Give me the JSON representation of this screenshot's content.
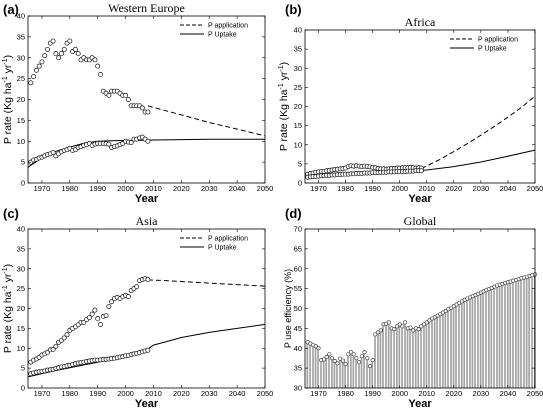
{
  "chart_data": [
    {
      "panel_label": "(a)",
      "title": "Western Europe",
      "type": "line",
      "xlabel": "Year",
      "ylabel": "P rate (Kg ha",
      "ylabel_sup1": "-1",
      "ylabel_mid": " yr",
      "ylabel_sup2": "-1",
      "ylabel_end": ")",
      "xlim": [
        1965,
        2050
      ],
      "ylim": [
        0,
        40
      ],
      "xticks": [
        1970,
        1980,
        1990,
        2000,
        2010,
        2020,
        2030,
        2040,
        2050
      ],
      "yticks": [
        0,
        5,
        10,
        15,
        20,
        25,
        30,
        35,
        40
      ],
      "legend_position": "top-right",
      "series": [
        {
          "name": "P application",
          "style": "dashed",
          "x": [
            2008,
            2015,
            2020,
            2025,
            2030,
            2035,
            2040,
            2045,
            2050
          ],
          "y": [
            18.5,
            17.2,
            16.3,
            15.4,
            14.5,
            13.7,
            12.9,
            12.1,
            11.3
          ]
        },
        {
          "name": "P Uptake",
          "style": "solid",
          "x": [
            1965,
            1970,
            1975,
            1980,
            1985,
            1990,
            1995,
            2000,
            2005,
            2010,
            2020,
            2030,
            2040,
            2050
          ],
          "y": [
            3.8,
            6.0,
            7.6,
            8.6,
            9.5,
            10.0,
            10.1,
            10.2,
            10.2,
            10.3,
            10.4,
            10.5,
            10.5,
            10.5
          ]
        },
        {
          "name": "",
          "style": "markers",
          "x": [
            1966,
            1967,
            1968,
            1969,
            1970,
            1971,
            1972,
            1973,
            1974,
            1975,
            1976,
            1977,
            1978,
            1979,
            1980,
            1981,
            1982,
            1983,
            1984,
            1985,
            1986,
            1987,
            1988,
            1989,
            1990,
            1991,
            1992,
            1993,
            1994,
            1995,
            1996,
            1997,
            1998,
            1999,
            2000,
            2001,
            2002,
            2003,
            2004,
            2005,
            2006,
            2007,
            2008
          ],
          "y": [
            24,
            25.5,
            27,
            28,
            29,
            30.5,
            32,
            33.5,
            34,
            31,
            30,
            31,
            32,
            33.5,
            34,
            31.5,
            32,
            31,
            29.5,
            30,
            29.5,
            29.5,
            30,
            29.5,
            28,
            26,
            22,
            21.5,
            21,
            22,
            22,
            22,
            21.5,
            21,
            21,
            20,
            18.5,
            18.5,
            18.5,
            18.5,
            18,
            17,
            17
          ]
        },
        {
          "name": "",
          "style": "markers",
          "x": [
            1966,
            1967,
            1968,
            1969,
            1970,
            1971,
            1972,
            1973,
            1974,
            1975,
            1976,
            1977,
            1978,
            1979,
            1980,
            1981,
            1982,
            1983,
            1984,
            1985,
            1986,
            1987,
            1988,
            1989,
            1990,
            1991,
            1992,
            1993,
            1994,
            1995,
            1996,
            1997,
            1998,
            1999,
            2000,
            2001,
            2002,
            2003,
            2004,
            2005,
            2006,
            2007,
            2008
          ],
          "y": [
            5,
            5.5,
            5.7,
            6,
            6.2,
            6.5,
            6.8,
            7,
            7.3,
            6.5,
            7,
            7.5,
            7.8,
            8,
            8.3,
            7.8,
            8,
            8.5,
            8.7,
            9,
            9.2,
            9.5,
            9,
            9.3,
            9.5,
            9.5,
            9.5,
            9.4,
            9.3,
            8.5,
            8.7,
            8.9,
            9.2,
            9.5,
            10,
            9.8,
            9.7,
            10.5,
            10.5,
            10.8,
            11,
            10.5,
            10
          ]
        }
      ]
    },
    {
      "panel_label": "(b)",
      "title": "Africa",
      "type": "line",
      "xlabel": "Year",
      "ylabel": "P rate (Kg ha",
      "ylabel_sup1": "-1",
      "ylabel_mid": " yr",
      "ylabel_sup2": "-1",
      "ylabel_end": ")",
      "xlim": [
        1965,
        2050
      ],
      "ylim": [
        0,
        40
      ],
      "xticks": [
        1970,
        1980,
        1990,
        2000,
        2010,
        2020,
        2030,
        2040,
        2050
      ],
      "yticks": [
        0,
        5,
        10,
        15,
        20,
        25,
        30,
        35,
        40
      ],
      "legend_position": "top-right",
      "series": [
        {
          "name": "P application",
          "style": "dashed",
          "x": [
            2008,
            2015,
            2020,
            2025,
            2030,
            2035,
            2040,
            2045,
            2050
          ],
          "y": [
            3.8,
            6.2,
            8.2,
            10.3,
            12.5,
            14.8,
            17.2,
            19.8,
            22.7
          ]
        },
        {
          "name": "P Uptake",
          "style": "solid",
          "x": [
            1965,
            1970,
            1975,
            1980,
            1985,
            1990,
            1995,
            2000,
            2005,
            2010,
            2020,
            2030,
            2040,
            2050
          ],
          "y": [
            1.5,
            1.7,
            1.9,
            2.1,
            2.3,
            2.5,
            2.7,
            2.9,
            3.1,
            3.4,
            4.3,
            5.5,
            7.0,
            8.6
          ]
        },
        {
          "name": "",
          "style": "markers",
          "x": [
            1966,
            1967,
            1968,
            1969,
            1970,
            1971,
            1972,
            1973,
            1974,
            1975,
            1976,
            1977,
            1978,
            1979,
            1980,
            1981,
            1982,
            1983,
            1984,
            1985,
            1986,
            1987,
            1988,
            1989,
            1990,
            1991,
            1992,
            1993,
            1994,
            1995,
            1996,
            1997,
            1998,
            1999,
            2000,
            2001,
            2002,
            2003,
            2004,
            2005,
            2006,
            2007,
            2008
          ],
          "y": [
            2.3,
            2.5,
            2.6,
            2.8,
            2.9,
            3,
            3,
            3.2,
            3.3,
            3.4,
            3.5,
            3.6,
            3.7,
            3.8,
            3.9,
            4.3,
            4.5,
            4.4,
            4.5,
            4.4,
            4.3,
            4.4,
            4.3,
            4.2,
            4.1,
            4,
            3.8,
            3.7,
            3.7,
            3.6,
            3.7,
            3.8,
            3.8,
            3.9,
            3.9,
            4,
            4,
            4,
            4.1,
            4,
            3.9,
            4,
            3.9
          ]
        },
        {
          "name": "",
          "style": "markers",
          "x": [
            1966,
            1967,
            1968,
            1969,
            1970,
            1971,
            1972,
            1973,
            1974,
            1975,
            1976,
            1977,
            1978,
            1979,
            1980,
            1981,
            1982,
            1983,
            1984,
            1985,
            1986,
            1987,
            1988,
            1989,
            1990,
            1991,
            1992,
            1993,
            1994,
            1995,
            1996,
            1997,
            1998,
            1999,
            2000,
            2001,
            2002,
            2003,
            2004,
            2005,
            2006,
            2007,
            2008
          ],
          "y": [
            1.5,
            1.6,
            1.7,
            1.7,
            1.8,
            1.9,
            1.9,
            2,
            2,
            2.1,
            2.1,
            2.2,
            2.2,
            2.3,
            2.3,
            2.3,
            2.4,
            2.4,
            2.5,
            2.5,
            2.5,
            2.6,
            2.6,
            2.6,
            2.7,
            2.7,
            2.7,
            2.8,
            2.8,
            2.8,
            2.9,
            2.9,
            2.9,
            3,
            3,
            3,
            3,
            3.1,
            3.1,
            3.1,
            3.2,
            3.2,
            3.2
          ]
        }
      ]
    },
    {
      "panel_label": "(c)",
      "title": "Asia",
      "type": "line",
      "xlabel": "Year",
      "ylabel": "P rate (Kg ha",
      "ylabel_sup1": "-1",
      "ylabel_mid": " yr",
      "ylabel_sup2": "-1",
      "ylabel_end": ")",
      "xlim": [
        1965,
        2050
      ],
      "ylim": [
        0,
        40
      ],
      "xticks": [
        1970,
        1980,
        1990,
        2000,
        2010,
        2020,
        2030,
        2040,
        2050
      ],
      "yticks": [
        0,
        5,
        10,
        15,
        20,
        25,
        30,
        35,
        40
      ],
      "legend_position": "top-right",
      "series": [
        {
          "name": "P application",
          "style": "dashed",
          "x": [
            2008,
            2015,
            2020,
            2025,
            2030,
            2035,
            2040,
            2045,
            2050
          ],
          "y": [
            27.2,
            27.0,
            26.8,
            26.6,
            26.4,
            26.2,
            26.0,
            25.8,
            25.6
          ]
        },
        {
          "name": "P Uptake",
          "style": "solid",
          "x": [
            1965,
            1970,
            1975,
            1980,
            1985,
            1990,
            1995,
            2000,
            2005,
            2008,
            2010,
            2020,
            2030,
            2040,
            2050
          ],
          "y": [
            2.8,
            3.6,
            4.4,
            5.1,
            5.8,
            6.5,
            7.3,
            8.0,
            8.9,
            9.8,
            10.8,
            12.7,
            14.0,
            15.0,
            16.0
          ]
        },
        {
          "name": "",
          "style": "markers",
          "x": [
            1966,
            1967,
            1968,
            1969,
            1970,
            1971,
            1972,
            1973,
            1974,
            1975,
            1976,
            1977,
            1978,
            1979,
            1980,
            1981,
            1982,
            1983,
            1984,
            1985,
            1986,
            1987,
            1988,
            1989,
            1990,
            1991,
            1992,
            1993,
            1994,
            1995,
            1996,
            1997,
            1998,
            1999,
            2000,
            2001,
            2002,
            2003,
            2004,
            2005,
            2006,
            2007,
            2008
          ],
          "y": [
            6.5,
            7,
            7.3,
            7.7,
            8.3,
            8.6,
            9,
            9.6,
            9.7,
            10.5,
            11.5,
            12,
            12.6,
            13.4,
            14.5,
            15,
            15.4,
            15.9,
            16.5,
            16.5,
            17.2,
            17.7,
            18.6,
            19.6,
            17.5,
            16,
            18,
            18.2,
            20.5,
            21.7,
            22.5,
            22.8,
            22.5,
            23,
            23.3,
            23,
            24.5,
            25,
            25.5,
            27,
            27.3,
            27.5,
            27.3
          ]
        },
        {
          "name": "",
          "style": "markers",
          "x": [
            1966,
            1967,
            1968,
            1969,
            1970,
            1971,
            1972,
            1973,
            1974,
            1975,
            1976,
            1977,
            1978,
            1979,
            1980,
            1981,
            1982,
            1983,
            1984,
            1985,
            1986,
            1987,
            1988,
            1989,
            1990,
            1991,
            1992,
            1993,
            1994,
            1995,
            1996,
            1997,
            1998,
            1999,
            2000,
            2001,
            2002,
            2003,
            2004,
            2005,
            2006,
            2007,
            2008
          ],
          "y": [
            3.6,
            3.8,
            4,
            4.1,
            4.2,
            4.3,
            4.5,
            4.6,
            4.7,
            4.9,
            5.1,
            5.3,
            5.4,
            5.6,
            5.7,
            5.9,
            6.1,
            6.3,
            6.4,
            6.5,
            6.7,
            6.8,
            6.9,
            7,
            7,
            7.1,
            7.2,
            7.2,
            7.3,
            7.4,
            7.5,
            7.6,
            7.8,
            7.9,
            8.1,
            8.2,
            8.4,
            8.6,
            8.7,
            8.9,
            9.1,
            9.3,
            9.5
          ]
        }
      ]
    },
    {
      "panel_label": "(d)",
      "title": "Global",
      "type": "bar",
      "xlabel": "Year",
      "ylabel": "P use efficiency (%)",
      "xlim": [
        1965,
        2050
      ],
      "ylim": [
        30,
        70
      ],
      "xticks": [
        1970,
        1980,
        1990,
        2000,
        2010,
        2020,
        2030,
        2040,
        2050
      ],
      "yticks": [
        30,
        35,
        40,
        45,
        50,
        55,
        60,
        65,
        70
      ],
      "bars": {
        "x": [
          1966,
          1967,
          1968,
          1969,
          1970,
          1971,
          1972,
          1973,
          1974,
          1975,
          1976,
          1977,
          1978,
          1979,
          1980,
          1981,
          1982,
          1983,
          1984,
          1985,
          1986,
          1987,
          1988,
          1989,
          1990,
          1991,
          1992,
          1993,
          1994,
          1995,
          1996,
          1997,
          1998,
          1999,
          2000,
          2001,
          2002,
          2003,
          2004,
          2005,
          2006,
          2007,
          2008,
          2009,
          2010,
          2011,
          2012,
          2013,
          2014,
          2015,
          2016,
          2017,
          2018,
          2019,
          2020,
          2021,
          2022,
          2023,
          2024,
          2025,
          2026,
          2027,
          2028,
          2029,
          2030,
          2031,
          2032,
          2033,
          2034,
          2035,
          2036,
          2037,
          2038,
          2039,
          2040,
          2041,
          2042,
          2043,
          2044,
          2045,
          2046,
          2047,
          2048,
          2049,
          2050
        ],
        "values": [
          41.5,
          41.2,
          40.8,
          40.5,
          40,
          37,
          37.2,
          37.8,
          38.5,
          37.5,
          36.8,
          36.2,
          37.4,
          36.9,
          36,
          38.5,
          39,
          38.5,
          37.5,
          36.5,
          38,
          39,
          37.5,
          35.5,
          37,
          43.5,
          44,
          44.5,
          46,
          46.2,
          46.5,
          45,
          44.8,
          45.5,
          46,
          45.5,
          46.5,
          45,
          45.2,
          44.5,
          45,
          44.8,
          45.5,
          46,
          46.5,
          47,
          47.5,
          47.8,
          48.2,
          48.6,
          49,
          49.4,
          49.8,
          50.2,
          50.6,
          51,
          51.4,
          51.8,
          52.2,
          52.5,
          52.8,
          53.1,
          53.4,
          53.7,
          54,
          54.3,
          54.6,
          54.9,
          55.2,
          55.5,
          55.8,
          56,
          56.2,
          56.4,
          56.6,
          56.8,
          57,
          57.2,
          57.4,
          57.6,
          57.8,
          58,
          58.2,
          58.4,
          58.6
        ]
      }
    }
  ]
}
